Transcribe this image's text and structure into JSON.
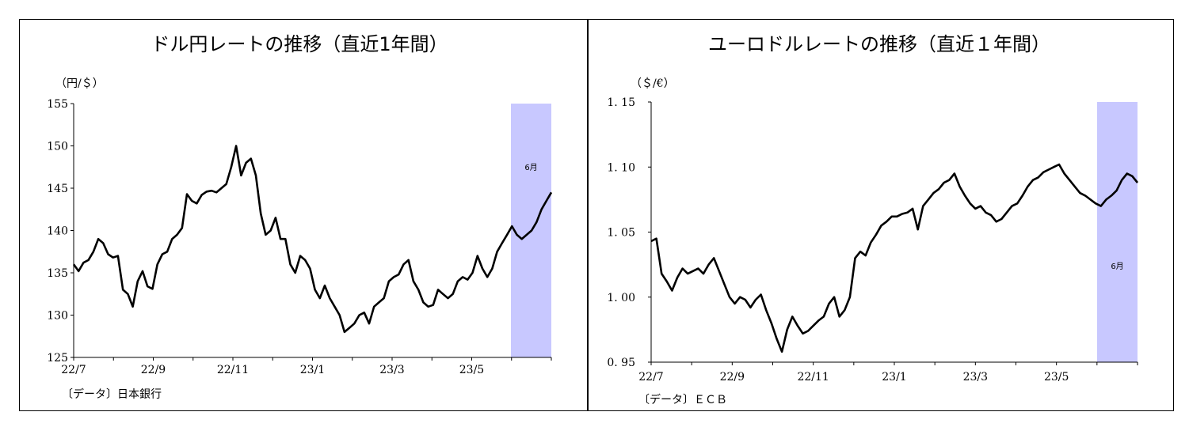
{
  "chart_data": [
    {
      "type": "line",
      "title": "ドル円レートの推移（直近1年間）",
      "unit_label": "（円/＄）",
      "source": "〔データ〕日本銀行",
      "band_label": "6月",
      "band_color": "#c8c8ff",
      "line_color": "#000000",
      "ylim": [
        125,
        155
      ],
      "yticks": [
        "155",
        "150",
        "145",
        "140",
        "135",
        "130",
        "125"
      ],
      "xticks": [
        "22/7",
        "22/9",
        "22/11",
        "23/1",
        "23/3",
        "23/5"
      ],
      "series": [
        {
          "values": [
            136.0,
            135.2,
            136.2,
            136.5,
            137.5,
            139.0,
            138.5,
            137.2,
            136.8,
            137.0,
            133.0,
            132.5,
            131.0,
            134.0,
            135.2,
            133.4,
            133.1,
            136.0,
            137.2,
            137.5,
            139.0,
            139.5,
            140.3,
            144.3,
            143.5,
            143.2,
            144.2,
            144.6,
            144.7,
            144.5,
            145.0,
            145.5,
            147.5,
            150.0,
            146.5,
            148.0,
            148.5,
            146.5,
            142.0,
            139.5,
            140.0,
            141.5,
            139.0,
            139.0,
            136.0,
            135.0,
            137.0,
            136.5,
            135.5,
            133.0,
            132.0,
            133.5,
            132.0,
            131.0,
            130.0,
            128.0,
            128.5,
            129.0,
            130.0,
            130.3,
            129.0,
            131.0,
            131.5,
            132.0,
            134.0,
            134.5,
            134.8,
            136.0,
            136.5,
            134.0,
            133.0,
            131.5,
            131.0,
            131.2,
            133.0,
            132.5,
            132.0,
            132.5,
            134.0,
            134.5,
            134.2,
            135.0,
            137.0,
            135.5,
            134.5,
            135.5,
            137.5,
            138.5,
            139.5,
            140.5,
            139.5,
            139.0,
            139.5,
            140.0,
            141.0,
            142.5,
            143.5,
            144.5
          ]
        }
      ]
    },
    {
      "type": "line",
      "title": "ユーロドルレートの推移（直近１年間）",
      "unit_label": "（＄/€）",
      "source": "〔データ〕ＥＣＢ",
      "band_label": "6月",
      "band_color": "#c8c8ff",
      "line_color": "#000000",
      "ylim": [
        0.95,
        1.15
      ],
      "yticks": [
        "1. 15",
        "1. 10",
        "1. 05",
        "1. 00",
        "0. 95"
      ],
      "xticks": [
        "22/7",
        "22/9",
        "22/11",
        "23/1",
        "23/3",
        "23/5"
      ],
      "series": [
        {
          "values": [
            1.043,
            1.045,
            1.018,
            1.012,
            1.005,
            1.015,
            1.022,
            1.018,
            1.02,
            1.022,
            1.018,
            1.025,
            1.03,
            1.02,
            1.01,
            1.0,
            0.995,
            1.0,
            0.998,
            0.992,
            0.998,
            1.002,
            0.99,
            0.98,
            0.968,
            0.958,
            0.975,
            0.985,
            0.978,
            0.972,
            0.974,
            0.978,
            0.982,
            0.985,
            0.995,
            1.0,
            0.985,
            0.99,
            1.0,
            1.03,
            1.035,
            1.032,
            1.042,
            1.048,
            1.055,
            1.058,
            1.062,
            1.062,
            1.064,
            1.065,
            1.068,
            1.052,
            1.07,
            1.075,
            1.08,
            1.083,
            1.088,
            1.09,
            1.095,
            1.085,
            1.078,
            1.072,
            1.068,
            1.07,
            1.065,
            1.063,
            1.058,
            1.06,
            1.065,
            1.07,
            1.072,
            1.078,
            1.085,
            1.09,
            1.092,
            1.096,
            1.098,
            1.1,
            1.102,
            1.095,
            1.09,
            1.085,
            1.08,
            1.078,
            1.075,
            1.072,
            1.07,
            1.075,
            1.078,
            1.082,
            1.09,
            1.095,
            1.093,
            1.088
          ]
        }
      ]
    }
  ]
}
